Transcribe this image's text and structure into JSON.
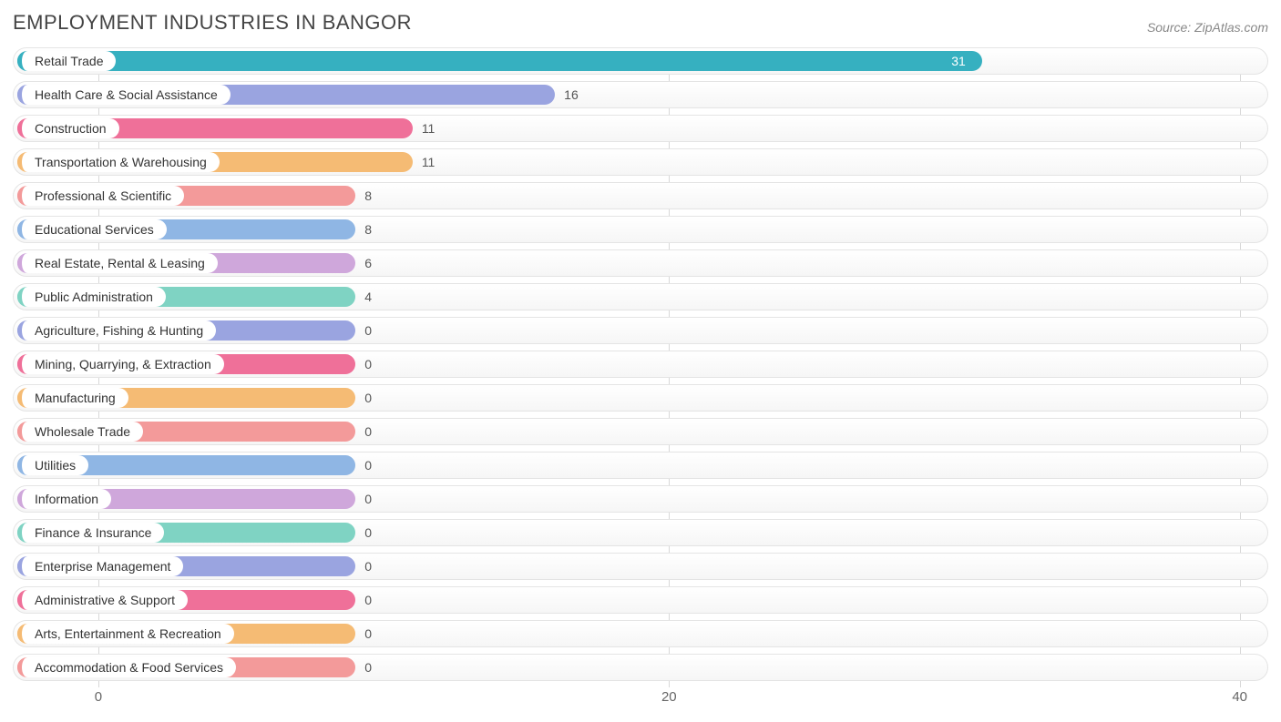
{
  "title": "EMPLOYMENT INDUSTRIES IN BANGOR",
  "source": "Source: ZipAtlas.com",
  "chart": {
    "type": "bar-horizontal",
    "xmin": -3,
    "xmax": 41,
    "xticks": [
      0,
      20,
      40
    ],
    "min_bar_value_for_width": 9,
    "track_bg": "#f7f7f7",
    "track_border": "#e4e4e4",
    "grid_color": "#d8d8d8",
    "title_color": "#444444",
    "title_fontsize": 22,
    "label_fontsize": 14,
    "value_label_on_bar_color": "#ffffff",
    "value_label_off_bar_color": "#555555",
    "rows": [
      {
        "label": "Retail Trade",
        "value": 31,
        "color": "#36b0c0"
      },
      {
        "label": "Health Care & Social Assistance",
        "value": 16,
        "color": "#9aa4e0"
      },
      {
        "label": "Construction",
        "value": 11,
        "color": "#ef7099"
      },
      {
        "label": "Transportation & Warehousing",
        "value": 11,
        "color": "#f5bb74"
      },
      {
        "label": "Professional & Scientific",
        "value": 8,
        "color": "#f39a9a"
      },
      {
        "label": "Educational Services",
        "value": 8,
        "color": "#8fb6e4"
      },
      {
        "label": "Real Estate, Rental & Leasing",
        "value": 6,
        "color": "#cfa7db"
      },
      {
        "label": "Public Administration",
        "value": 4,
        "color": "#7fd3c3"
      },
      {
        "label": "Agriculture, Fishing & Hunting",
        "value": 0,
        "color": "#9aa4e0"
      },
      {
        "label": "Mining, Quarrying, & Extraction",
        "value": 0,
        "color": "#ef7099"
      },
      {
        "label": "Manufacturing",
        "value": 0,
        "color": "#f5bb74"
      },
      {
        "label": "Wholesale Trade",
        "value": 0,
        "color": "#f39a9a"
      },
      {
        "label": "Utilities",
        "value": 0,
        "color": "#8fb6e4"
      },
      {
        "label": "Information",
        "value": 0,
        "color": "#cfa7db"
      },
      {
        "label": "Finance & Insurance",
        "value": 0,
        "color": "#7fd3c3"
      },
      {
        "label": "Enterprise Management",
        "value": 0,
        "color": "#9aa4e0"
      },
      {
        "label": "Administrative & Support",
        "value": 0,
        "color": "#ef7099"
      },
      {
        "label": "Arts, Entertainment & Recreation",
        "value": 0,
        "color": "#f5bb74"
      },
      {
        "label": "Accommodation & Food Services",
        "value": 0,
        "color": "#f39a9a"
      }
    ]
  }
}
